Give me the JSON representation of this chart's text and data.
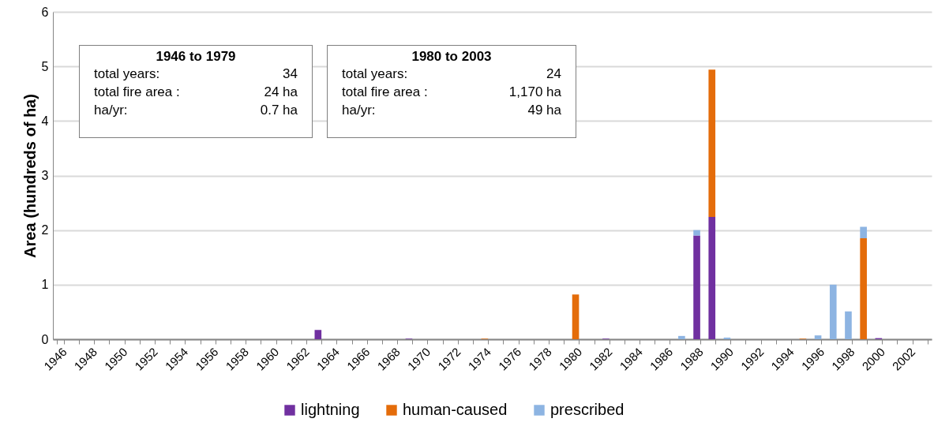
{
  "chart_data": {
    "type": "bar",
    "ylabel": "Area (hundreds of ha)",
    "stacked": true,
    "grid": "y",
    "legend": "bottom",
    "categories": [
      "1946",
      null,
      "1948",
      null,
      "1950",
      null,
      "1952",
      null,
      "1954",
      null,
      "1956",
      null,
      "1958",
      null,
      "1960",
      null,
      "1962",
      null,
      "1964",
      null,
      "1966",
      null,
      "1968",
      null,
      "1970",
      null,
      "1972",
      null,
      "1974",
      null,
      "1976",
      null,
      "1978",
      null,
      "1980",
      null,
      "1982",
      null,
      "1984",
      null,
      "1986",
      null,
      "1988",
      null,
      "1990",
      null,
      "1992",
      null,
      "1994",
      null,
      "1996",
      null,
      "1998",
      null,
      "2000",
      null,
      "2002",
      null
    ],
    "series": [
      {
        "name": "lightning",
        "color": "#7030a0",
        "values": [
          0,
          0,
          0,
          0,
          0,
          0,
          0,
          0,
          0,
          0,
          0,
          0,
          0,
          0,
          0,
          0,
          0,
          0.17,
          0,
          0,
          0,
          0,
          0,
          0.01,
          0,
          0,
          0,
          0,
          0,
          0,
          0,
          0,
          0,
          0,
          0,
          0,
          0.01,
          0,
          0,
          0,
          0,
          0,
          1.9,
          2.24,
          0,
          0,
          0,
          0,
          0,
          0,
          0,
          0,
          0,
          0,
          0.02,
          0,
          0,
          0
        ]
      },
      {
        "name": "human-caused",
        "color": "#e46c0a",
        "values": [
          0,
          0,
          0,
          0,
          0,
          0,
          0,
          0,
          0,
          0,
          0,
          0,
          0,
          0,
          0,
          0,
          0,
          0,
          0,
          0,
          0,
          0,
          0,
          0,
          0,
          0,
          0,
          0,
          0.01,
          0,
          0,
          0,
          0,
          0,
          0.82,
          0,
          0,
          0,
          0,
          0,
          0,
          0,
          0,
          2.7,
          0,
          0,
          0,
          0,
          0,
          0.01,
          0,
          0,
          0,
          1.85,
          0,
          0,
          0,
          0
        ]
      },
      {
        "name": "prescribed",
        "color": "#8db4e2",
        "values": [
          0,
          0,
          0,
          0,
          0,
          0,
          0,
          0,
          0,
          0,
          0,
          0,
          0,
          0,
          0,
          0,
          0,
          0,
          0,
          0,
          0,
          0,
          0,
          0,
          0,
          0,
          0,
          0,
          0,
          0,
          0,
          0,
          0,
          0,
          0,
          0,
          0,
          0,
          0,
          0,
          0,
          0.06,
          0.1,
          0,
          0.03,
          0,
          0,
          0,
          0,
          0,
          0.07,
          1.0,
          0.51,
          0.21,
          0,
          0,
          0,
          0
        ]
      }
    ],
    "ylim": [
      0,
      6
    ],
    "yticks": [
      0,
      1,
      2,
      3,
      4,
      5,
      6
    ],
    "annotations": [
      "1946 to 1979",
      "total years:",
      "34",
      "total  fire area :",
      "24 ha",
      "ha/yr:",
      "0.7 ha",
      "1980 to 2003",
      "total years:",
      "24",
      "total fire area :",
      "1,170 ha",
      "ha/yr:",
      "49 ha"
    ]
  }
}
